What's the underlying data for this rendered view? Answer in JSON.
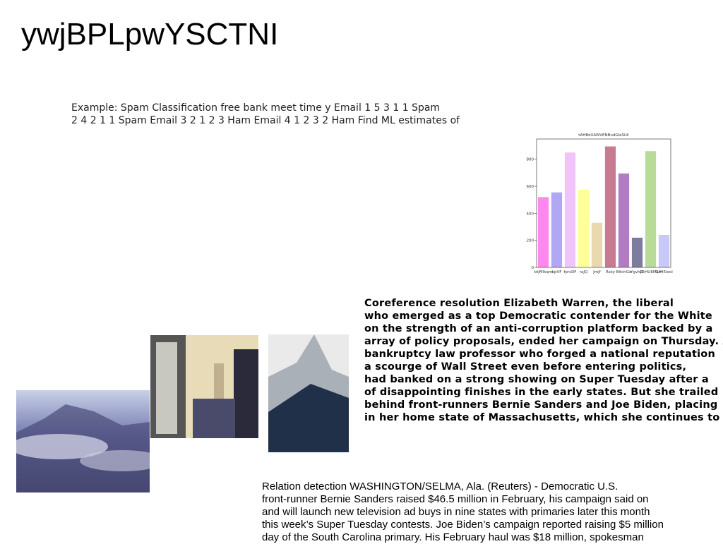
{
  "title": "ywjBPLpwYSCTNI",
  "intro": {
    "lines": [
      "Example: Spam Classification free bank meet time y Email 1 5 3 1 1 Spam",
      "2 4 2 1 1 Spam Email 3 2 1 2 3 Ham Email 4 1 2 3 2 Ham Find ML estimates of"
    ]
  },
  "chart_data": {
    "type": "bar",
    "title": "tAHBdXAWVENBudGleSLK",
    "categories": [
      "btjMlkqm",
      "bpVF",
      "fprsDF",
      "raJQ",
      "Jmjf",
      "Rsky",
      "BitchGe",
      "YgvhJZ",
      "ZcHUKMLA",
      "QzH5looi"
    ],
    "values": [
      520,
      555,
      850,
      575,
      330,
      895,
      695,
      220,
      860,
      240
    ],
    "colors": [
      "#ff88ee",
      "#b0a8f4",
      "#f0c4fa",
      "#ffff99",
      "#ead8b0",
      "#c87a90",
      "#b07cc4",
      "#7c7c9c",
      "#b8dc98",
      "#c8c8fa"
    ],
    "ylim": [
      0,
      950
    ],
    "yticks": [
      0,
      200,
      400,
      600,
      800
    ]
  },
  "article1": {
    "lines": [
      "Coreference resolution Elizabeth Warren, the liberal",
      "who emerged as a top Democratic contender for the White",
      "on the strength of an anti-corruption platform backed by a",
      "array of policy proposals, ended her campaign on Thursday. A",
      "bankruptcy law professor who forged a national reputation",
      "a scourge of Wall Street even before entering politics,",
      "had banked on a strong showing on Super Tuesday after a",
      "of disappointing finishes in the early states. But she trailed",
      "behind front-runners Bernie Sanders and Joe Biden, placing",
      "in her home state of Massachusetts, which she continues to"
    ]
  },
  "article2": {
    "lines": [
      "Relation detection WASHINGTON/SELMA, Ala. (Reuters) - Democratic U.S.",
      "front-runner Bernie Sanders raised $46.5 million in February, his campaign said on",
      "and will launch new television ad buys in nine states with primaries later this month",
      "this week’s Super Tuesday contests. Joe Biden’s campaign reported raising $5 million",
      "day of the South Carolina primary. His February haul was $18 million, spokesman"
    ]
  }
}
